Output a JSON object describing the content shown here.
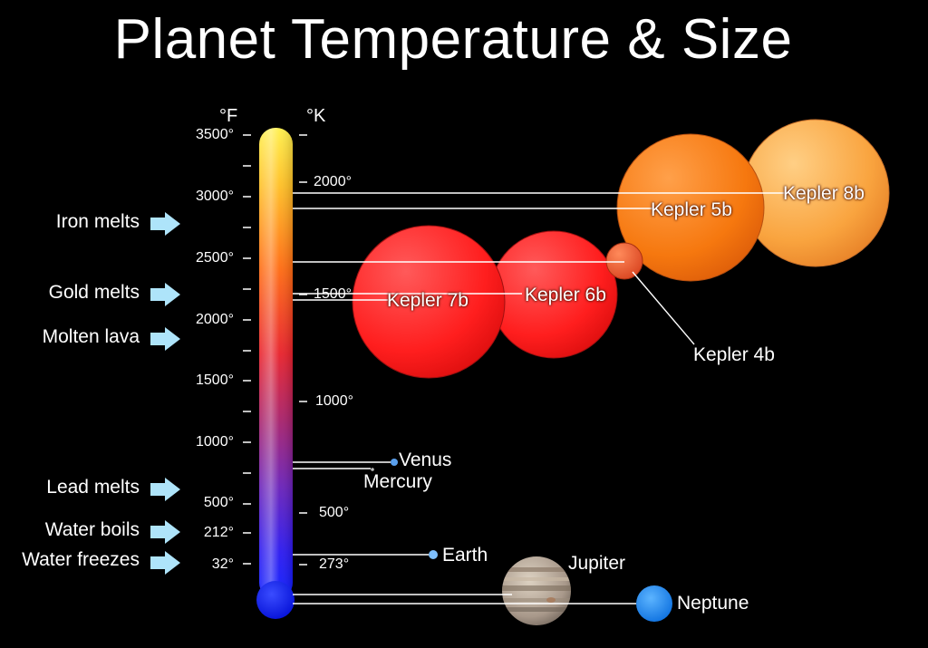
{
  "title": "Planet Temperature & Size",
  "units": {
    "fahrenheit": "°F",
    "kelvin": "°K"
  },
  "fahrenheit_ticks": [
    "3500°",
    "3000°",
    "2500°",
    "2000°",
    "1500°",
    "1000°",
    "500°",
    "212°",
    "32°"
  ],
  "kelvin_ticks": [
    "2000°",
    "1500°",
    "1000°",
    "500°",
    "273°"
  ],
  "landmarks": [
    {
      "label": "Iron melts",
      "temp_f": 2800
    },
    {
      "label": "Gold melts",
      "temp_f": 1948
    },
    {
      "label": "Molten lava",
      "temp_f": 1700
    },
    {
      "label": "Lead melts",
      "temp_f": 621
    },
    {
      "label": "Water boils",
      "temp_f": 212
    },
    {
      "label": "Water freezes",
      "temp_f": 32
    }
  ],
  "planets": [
    {
      "name": "Kepler 8b",
      "color": "#f7a23c"
    },
    {
      "name": "Kepler 5b",
      "color": "#f57a12"
    },
    {
      "name": "Kepler 4b",
      "color": "#e8502a"
    },
    {
      "name": "Kepler 7b",
      "color": "#ff2020"
    },
    {
      "name": "Kepler 6b",
      "color": "#ff2828"
    },
    {
      "name": "Venus",
      "color": "#4a90e2"
    },
    {
      "name": "Mercury",
      "color": "#999999"
    },
    {
      "name": "Earth",
      "color": "#4a90e2"
    },
    {
      "name": "Jupiter",
      "color": "#b8a894"
    },
    {
      "name": "Neptune",
      "color": "#1e88ee"
    }
  ],
  "colors": {
    "thermometer_top": "#ffe033",
    "thermometer_mid": "#ff7a10",
    "thermometer_low": "#8a1fa8",
    "thermometer_bulb": "#0a1cff"
  }
}
